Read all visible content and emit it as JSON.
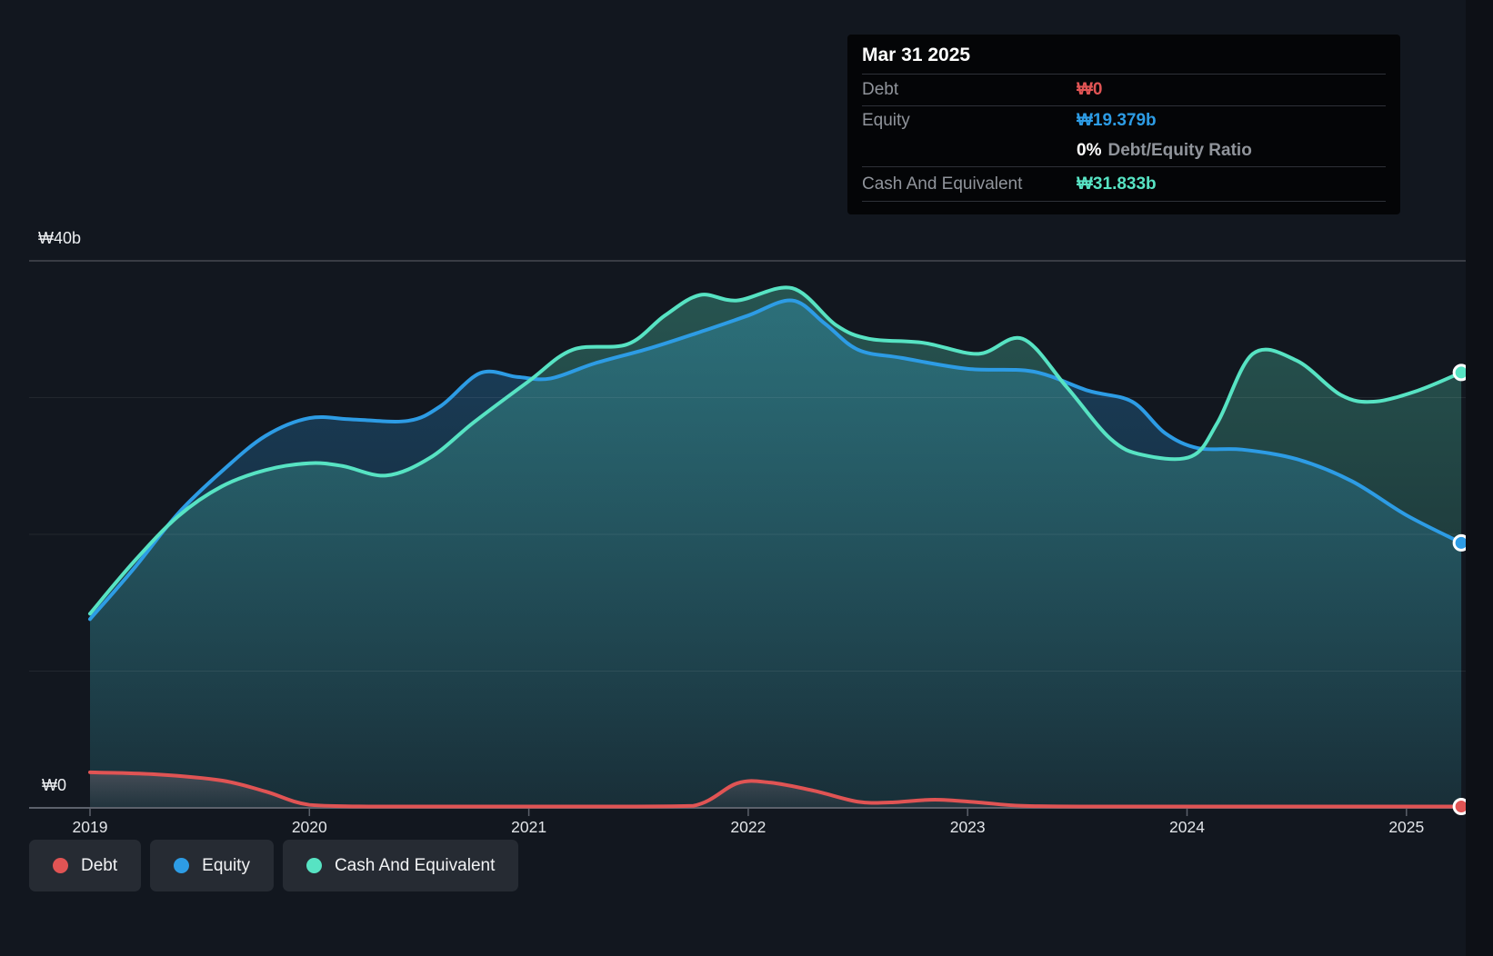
{
  "tooltip": {
    "date": "Mar 31 2025",
    "rows": {
      "debt": {
        "label": "Debt",
        "value": "₩0"
      },
      "equity": {
        "label": "Equity",
        "value": "₩19.379b"
      },
      "ratio": {
        "value": "0%",
        "label": "Debt/Equity Ratio"
      },
      "cash": {
        "label": "Cash And Equivalent",
        "value": "₩31.833b"
      }
    }
  },
  "legend": {
    "items": [
      {
        "label": "Debt"
      },
      {
        "label": "Equity"
      },
      {
        "label": "Cash And Equivalent"
      }
    ]
  },
  "colors": {
    "background": "#12171f",
    "right_margin": "#0d1016",
    "tooltip_background": "#040507",
    "legend_pill_background": "#262b33",
    "axis": "#5c616b",
    "debt": "#e05454",
    "equity": "#2d9ce5",
    "cash": "#57e3c3"
  },
  "chart_data": {
    "type": "area",
    "value_unit": "billion ₩",
    "xlim": [
      2019,
      2025.25
    ],
    "ylim": [
      0,
      40
    ],
    "grid_on": true,
    "grid_lines": [
      10,
      20,
      30,
      40
    ],
    "legend_position": "bottom-left",
    "x_ticks": [
      {
        "label": "2019",
        "year": 2019
      },
      {
        "label": "2020",
        "year": 2020
      },
      {
        "label": "2021",
        "year": 2021
      },
      {
        "label": "2022",
        "year": 2022
      },
      {
        "label": "2023",
        "year": 2023
      },
      {
        "label": "2024",
        "year": 2024
      },
      {
        "label": "2025",
        "year": 2025
      }
    ],
    "y_ticks": [
      {
        "label": "₩40b",
        "value": 40
      },
      {
        "label": "₩0",
        "value": 0
      }
    ],
    "series": [
      {
        "name": "Debt",
        "color": "#e05454",
        "points": [
          [
            2019.0,
            2.5
          ],
          [
            2019.3,
            2.35
          ],
          [
            2019.6,
            1.9
          ],
          [
            2019.8,
            1.1
          ],
          [
            2020.0,
            0.12
          ],
          [
            2020.3,
            0
          ],
          [
            2020.7,
            0
          ],
          [
            2021.0,
            0
          ],
          [
            2021.4,
            0
          ],
          [
            2021.75,
            0.05
          ],
          [
            2021.95,
            1.7
          ],
          [
            2022.1,
            1.75
          ],
          [
            2022.3,
            1.15
          ],
          [
            2022.5,
            0.35
          ],
          [
            2022.65,
            0.3
          ],
          [
            2022.85,
            0.5
          ],
          [
            2023.05,
            0.3
          ],
          [
            2023.25,
            0.05
          ],
          [
            2023.6,
            0
          ],
          [
            2024.0,
            0
          ],
          [
            2024.5,
            0
          ],
          [
            2025.0,
            0
          ],
          [
            2025.25,
            0
          ]
        ]
      },
      {
        "name": "Equity",
        "color": "#2d9ce5",
        "points": [
          [
            2019.0,
            13.8
          ],
          [
            2019.2,
            17.5
          ],
          [
            2019.4,
            21.5
          ],
          [
            2019.6,
            24.6
          ],
          [
            2019.8,
            27.2
          ],
          [
            2020.0,
            28.5
          ],
          [
            2020.2,
            28.4
          ],
          [
            2020.45,
            28.3
          ],
          [
            2020.6,
            29.4
          ],
          [
            2020.78,
            31.8
          ],
          [
            2020.95,
            31.5
          ],
          [
            2021.1,
            31.4
          ],
          [
            2021.3,
            32.5
          ],
          [
            2021.55,
            33.6
          ],
          [
            2021.8,
            34.9
          ],
          [
            2022.0,
            36.0
          ],
          [
            2022.2,
            37.1
          ],
          [
            2022.35,
            35.4
          ],
          [
            2022.5,
            33.5
          ],
          [
            2022.7,
            32.9
          ],
          [
            2023.0,
            32.1
          ],
          [
            2023.3,
            31.9
          ],
          [
            2023.55,
            30.5
          ],
          [
            2023.75,
            29.7
          ],
          [
            2023.9,
            27.4
          ],
          [
            2024.05,
            26.3
          ],
          [
            2024.25,
            26.2
          ],
          [
            2024.5,
            25.5
          ],
          [
            2024.75,
            23.9
          ],
          [
            2025.0,
            21.4
          ],
          [
            2025.25,
            19.379
          ]
        ]
      },
      {
        "name": "Cash And Equivalent",
        "color": "#57e3c3",
        "points": [
          [
            2019.0,
            14.2
          ],
          [
            2019.2,
            18.0
          ],
          [
            2019.4,
            21.3
          ],
          [
            2019.6,
            23.5
          ],
          [
            2019.8,
            24.7
          ],
          [
            2020.0,
            25.2
          ],
          [
            2020.15,
            25.0
          ],
          [
            2020.35,
            24.3
          ],
          [
            2020.55,
            25.6
          ],
          [
            2020.75,
            28.2
          ],
          [
            2021.0,
            31.2
          ],
          [
            2021.2,
            33.5
          ],
          [
            2021.45,
            33.9
          ],
          [
            2021.62,
            36.0
          ],
          [
            2021.78,
            37.5
          ],
          [
            2021.95,
            37.1
          ],
          [
            2022.2,
            38.0
          ],
          [
            2022.4,
            35.3
          ],
          [
            2022.55,
            34.3
          ],
          [
            2022.8,
            34.0
          ],
          [
            2023.05,
            33.2
          ],
          [
            2023.25,
            34.3
          ],
          [
            2023.45,
            30.8
          ],
          [
            2023.65,
            27.0
          ],
          [
            2023.8,
            25.8
          ],
          [
            2024.02,
            25.7
          ],
          [
            2024.14,
            28.2
          ],
          [
            2024.3,
            33.2
          ],
          [
            2024.5,
            32.7
          ],
          [
            2024.7,
            30.2
          ],
          [
            2024.85,
            29.7
          ],
          [
            2025.05,
            30.5
          ],
          [
            2025.25,
            31.833
          ]
        ]
      }
    ]
  }
}
